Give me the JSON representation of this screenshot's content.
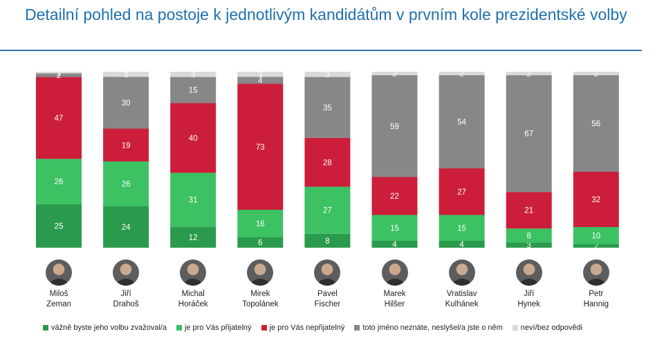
{
  "title": "Detailní pohled na postoje k jednotlivým kandidátům v prvním kole prezidentské volby",
  "chart_data": {
    "type": "bar",
    "stacked": true,
    "normalized": true,
    "categories": [
      "Miloš Zeman",
      "Jiří Drahoš",
      "Michal Horáček",
      "Mirek Topolánek",
      "Pavel Fischer",
      "Marek Hilšer",
      "Vratislav Kulhánek",
      "Jiří Hynek",
      "Petr Hannig"
    ],
    "category_lines": [
      [
        "Miloš",
        "Zeman"
      ],
      [
        "Jiří",
        "Drahoš"
      ],
      [
        "Michal",
        "Horáček"
      ],
      [
        "Mirek",
        "Topolánek"
      ],
      [
        "Pavel",
        "Fischer"
      ],
      [
        "Marek",
        "Hilšer"
      ],
      [
        "Vratislav",
        "Kulhánek"
      ],
      [
        "Jiří",
        "Hynek"
      ],
      [
        "Petr",
        "Hannig"
      ]
    ],
    "series": [
      {
        "name": "vážně byste jeho volbu zvažoval/a",
        "color": "#2a9a4c",
        "values": [
          25,
          24,
          12,
          6,
          8,
          4,
          4,
          3,
          2
        ]
      },
      {
        "name": "je pro Vás přijatelný",
        "color": "#3cc163",
        "values": [
          26,
          26,
          31,
          16,
          27,
          15,
          15,
          8,
          10
        ]
      },
      {
        "name": "je pro Vás nepřijatelný",
        "color": "#cc1e3a",
        "values": [
          47,
          19,
          40,
          73,
          28,
          22,
          27,
          21,
          32
        ]
      },
      {
        "name": "toto jméno neznáte, neslyšel/a jste o něm",
        "color": "#878787",
        "values": [
          2,
          30,
          15,
          4,
          35,
          59,
          54,
          67,
          56
        ]
      },
      {
        "name": "neví/bez odpovědi",
        "color": "#d9d9d9",
        "values": [
          1,
          3,
          3,
          3,
          3,
          2,
          2,
          2,
          2
        ]
      }
    ],
    "ylim": [
      0,
      100
    ],
    "legend_position": "bottom",
    "grid": false
  }
}
